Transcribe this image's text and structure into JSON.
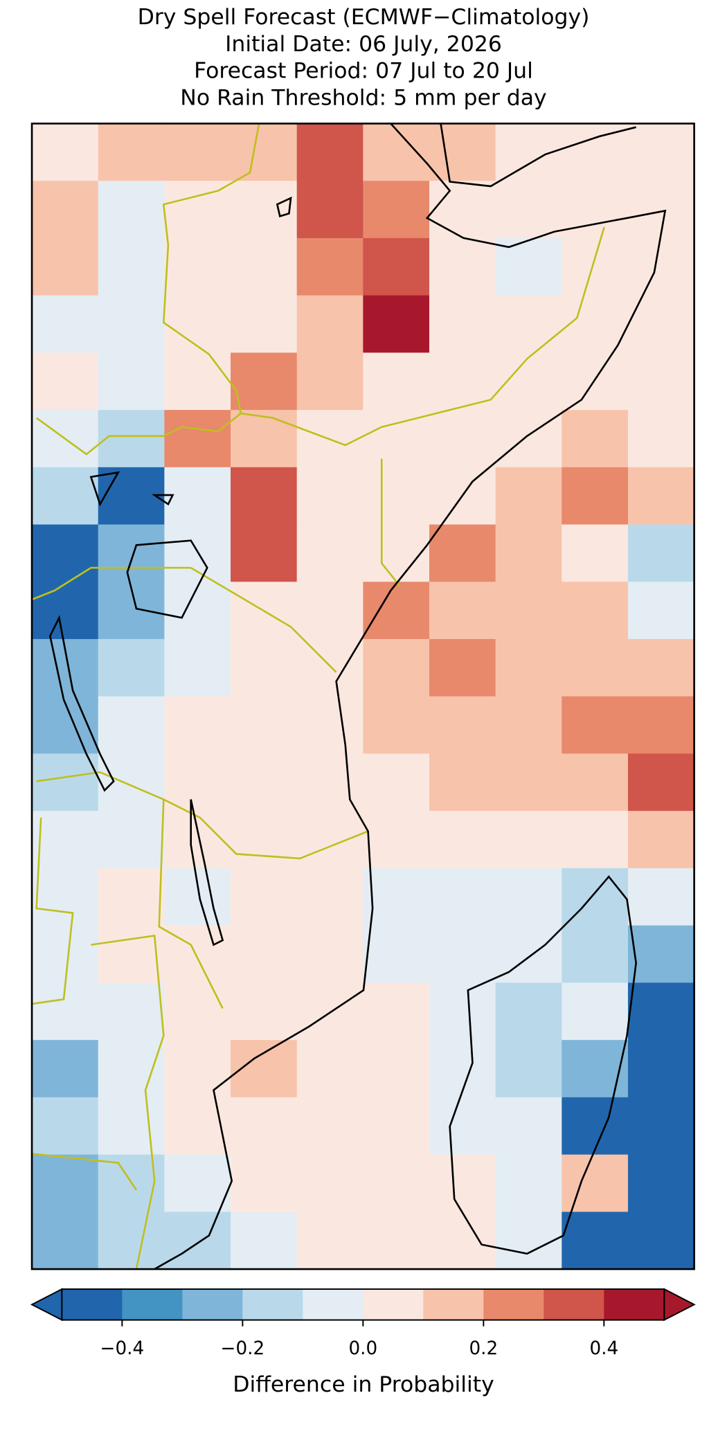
{
  "chart_data": {
    "type": "heatmap",
    "title": [
      "Dry Spell Forecast (ECMWF−Climatology)",
      "Initial Date: 06 July, 2026",
      "Forecast Period: 07 Jul to 20 Jul",
      "No Rain Threshold: 5 mm per day"
    ],
    "z": [
      [
        0.05,
        0.15,
        0.12,
        0.15,
        0.3,
        0.1,
        0.1,
        0.05,
        0.05,
        0.05
      ],
      [
        0.1,
        -0.1,
        0.05,
        0.05,
        0.35,
        0.25,
        0.05,
        0.05,
        0.05,
        0.05
      ],
      [
        0.1,
        -0.05,
        0.05,
        0.05,
        0.25,
        0.3,
        0.05,
        -0.05,
        0.05,
        0.05
      ],
      [
        -0.05,
        -0.1,
        0.05,
        0.05,
        0.1,
        0.4,
        0.05,
        0.05,
        0.05,
        0.05
      ],
      [
        0.05,
        -0.1,
        0.05,
        0.2,
        0.15,
        0.05,
        0.05,
        0.05,
        0.05,
        0.05
      ],
      [
        -0.05,
        -0.15,
        0.25,
        0.1,
        0.05,
        0.05,
        0.05,
        0.05,
        0.15,
        0.05
      ],
      [
        -0.2,
        -0.45,
        -0.1,
        0.35,
        0.05,
        0.05,
        0.05,
        0.15,
        0.2,
        0.1
      ],
      [
        -0.45,
        -0.3,
        -0.1,
        0.3,
        0.05,
        0.05,
        0.2,
        0.15,
        0.05,
        -0.15
      ],
      [
        -0.45,
        -0.3,
        -0.1,
        0.05,
        0.05,
        0.25,
        0.15,
        0.15,
        0.15,
        -0.1
      ],
      [
        -0.3,
        -0.15,
        -0.05,
        0.05,
        0.05,
        0.15,
        0.2,
        0.15,
        0.15,
        0.15
      ],
      [
        -0.25,
        -0.1,
        0.05,
        0.05,
        0.05,
        0.15,
        0.15,
        0.15,
        0.25,
        0.25
      ],
      [
        -0.15,
        -0.05,
        0.05,
        0.05,
        0.05,
        0.05,
        0.15,
        0.1,
        0.15,
        0.35
      ],
      [
        -0.05,
        -0.05,
        0.05,
        0.05,
        0.05,
        0.05,
        0.05,
        0.05,
        0.05,
        0.15
      ],
      [
        -0.05,
        0.05,
        -0.05,
        0.05,
        0.05,
        -0.05,
        -0.05,
        -0.05,
        -0.2,
        -0.1
      ],
      [
        -0.05,
        0.05,
        0.05,
        0.05,
        0.05,
        -0.05,
        -0.05,
        -0.1,
        -0.15,
        -0.3
      ],
      [
        -0.1,
        -0.05,
        0.05,
        0.05,
        0.05,
        0.05,
        -0.05,
        -0.15,
        -0.1,
        -0.45
      ],
      [
        -0.25,
        -0.05,
        0.05,
        0.15,
        0.05,
        0.05,
        -0.05,
        -0.15,
        -0.3,
        -0.45
      ],
      [
        -0.15,
        -0.05,
        0.05,
        0.05,
        0.05,
        0.05,
        -0.05,
        -0.1,
        -0.45,
        -0.45
      ],
      [
        -0.25,
        -0.2,
        -0.1,
        0.05,
        0.05,
        0.05,
        0.05,
        -0.05,
        0.1,
        -0.45
      ],
      [
        -0.25,
        -0.2,
        -0.2,
        -0.05,
        0.05,
        0.05,
        0.05,
        -0.05,
        -0.45,
        -0.45
      ]
    ],
    "colorbar": {
      "label": "Difference in Probability",
      "bounds": [
        -0.5,
        -0.4,
        -0.3,
        -0.2,
        -0.1,
        0,
        0.1,
        0.2,
        0.3,
        0.4,
        0.5
      ],
      "colors": [
        "#2166ac",
        "#4393c3",
        "#7fb5d8",
        "#b9d9ea",
        "#e4edf3",
        "#fae8e0",
        "#f8c3ab",
        "#e8896c",
        "#d0554a",
        "#a8182c"
      ],
      "under_color": "#2166ac",
      "over_color": "#a8182c",
      "ticks": [
        {
          "value": -0.4,
          "label": "−0.4"
        },
        {
          "value": -0.2,
          "label": "−0.2"
        },
        {
          "value": 0,
          "label": "0.0"
        },
        0.2,
        0.4
      ]
    }
  }
}
